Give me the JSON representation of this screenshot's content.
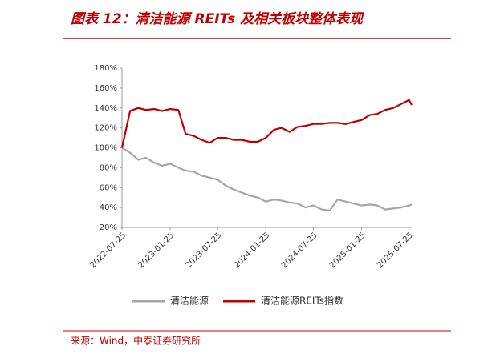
{
  "chart_data": {
    "type": "line",
    "title": "图表 12：清洁能源 REITs 及相关板块整体表现",
    "source": "来源：Wind，中泰证券研究所",
    "x": [
      "2022-07-25",
      "2022-08-25",
      "2022-09-25",
      "2022-10-25",
      "2022-11-25",
      "2022-12-25",
      "2023-01-25",
      "2023-02-25",
      "2023-03-25",
      "2023-04-25",
      "2023-05-25",
      "2023-06-25",
      "2023-07-25",
      "2023-08-25",
      "2023-09-25",
      "2023-10-25",
      "2023-11-25",
      "2023-12-25",
      "2024-01-25",
      "2024-02-25",
      "2024-03-25",
      "2024-04-25",
      "2024-05-25",
      "2024-06-25",
      "2024-07-25",
      "2024-08-25",
      "2024-09-25",
      "2024-10-25",
      "2024-11-25",
      "2024-12-25",
      "2025-01-25",
      "2025-02-25",
      "2025-03-25",
      "2025-04-25",
      "2025-05-25",
      "2025-06-25",
      "2025-07-25",
      "2025-08-04"
    ],
    "series": [
      {
        "name": "清洁能源",
        "color": "#a6a6a6",
        "values": [
          100,
          95,
          88,
          90,
          85,
          82,
          84,
          80,
          77,
          76,
          72,
          70,
          68,
          62,
          58,
          55,
          52,
          50,
          46,
          48,
          47,
          45,
          44,
          40,
          42,
          38,
          37,
          48,
          46,
          44,
          42,
          43,
          42,
          38,
          39,
          40,
          42,
          43
        ]
      },
      {
        "name": "清洁能源REITs指数",
        "color": "#c00000",
        "values": [
          100,
          137,
          140,
          138,
          139,
          137,
          139,
          138,
          114,
          112,
          108,
          105,
          110,
          110,
          108,
          108,
          106,
          106,
          110,
          118,
          120,
          116,
          121,
          122,
          124,
          124,
          125,
          125,
          124,
          126,
          128,
          133,
          134,
          138,
          140,
          144,
          148,
          143
        ]
      }
    ],
    "xlim": [
      "2022-07-25",
      "2025-08-04"
    ],
    "xticks": [
      "2022-07-25",
      "2023-01-25",
      "2023-07-25",
      "2024-01-25",
      "2024-07-25",
      "2025-01-25",
      "2025-07-25"
    ],
    "ylim": [
      20,
      180
    ],
    "yticks": [
      {
        "value": 20,
        "label": "20%"
      },
      {
        "value": 40,
        "label": "40%"
      },
      {
        "value": 60,
        "label": "60%"
      },
      {
        "value": 80,
        "label": "80%"
      },
      {
        "value": 100,
        "label": "100%"
      },
      {
        "value": 120,
        "label": "120%"
      },
      {
        "value": 140,
        "label": "140%"
      },
      {
        "value": 160,
        "label": "160%"
      },
      {
        "value": 180,
        "label": "180%"
      }
    ]
  }
}
